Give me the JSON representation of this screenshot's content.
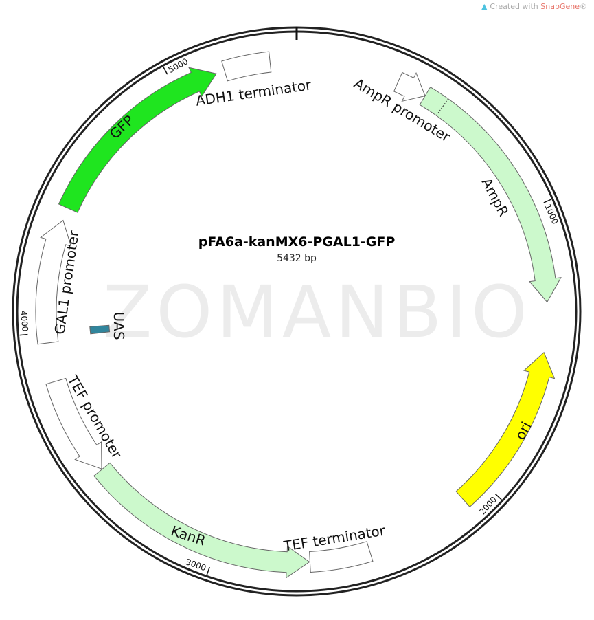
{
  "credit": {
    "prefix": "Created with ",
    "brand": "SnapGene",
    "suffix": "®",
    "icon": "snapgene-logo-icon"
  },
  "watermark": "ZOMANBIO",
  "plasmid": {
    "name": "pFA6a-kanMX6-PGAL1-GFP",
    "length_label": "5432 bp",
    "length": 5432
  },
  "ticks": [
    {
      "bp": 1000,
      "label": "1000"
    },
    {
      "bp": 2000,
      "label": "2000"
    },
    {
      "bp": 3000,
      "label": "3000"
    },
    {
      "bp": 4000,
      "label": "4000"
    },
    {
      "bp": 5000,
      "label": "5000"
    }
  ],
  "features": [
    {
      "name": "AmpR promoter",
      "start": 360,
      "end": 465,
      "direction": "forward",
      "color": "#ffffff"
    },
    {
      "name": "AmpR",
      "start": 465,
      "end": 1326,
      "direction": "forward",
      "color": "#ccf9cc"
    },
    {
      "name": "ori",
      "start": 1500,
      "end": 2089,
      "direction": "reverse",
      "color": "#ffff00"
    },
    {
      "name": "TEF terminator",
      "start": 2460,
      "end": 2670,
      "direction": "none",
      "color": "#ffffff"
    },
    {
      "name": "KanR",
      "start": 2672,
      "end": 3485,
      "direction": "reverse",
      "color": "#ccf9cc"
    },
    {
      "name": "TEF promoter",
      "start": 3487,
      "end": 3830,
      "direction": "reverse",
      "color": "#ffffff"
    },
    {
      "name": "GAL1 promoter",
      "start": 3965,
      "end": 4395,
      "direction": "forward",
      "color": "#ffffff"
    },
    {
      "name": "UAS",
      "start": 3980,
      "end": 4010,
      "direction": "none",
      "color": "#31859c",
      "inner": true
    },
    {
      "name": "GFP",
      "start": 4440,
      "end": 5150,
      "direction": "forward",
      "color": "#1fe51f"
    },
    {
      "name": "ADH1 terminator",
      "start": 5180,
      "end": 5340,
      "direction": "none",
      "color": "#ffffff"
    }
  ]
}
